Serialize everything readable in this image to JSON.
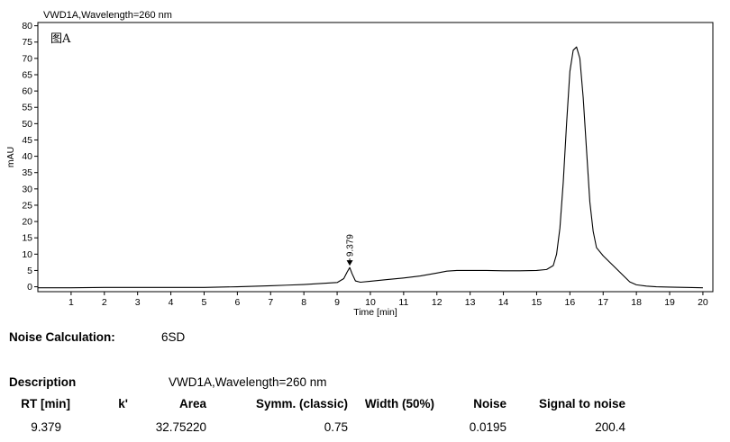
{
  "chart_data": {
    "type": "line",
    "title": "VWD1A,Wavelength=260 nm",
    "annotation": "图A",
    "xlabel": "Time [min]",
    "ylabel": "mAU",
    "xlim": [
      0,
      20.3
    ],
    "ylim": [
      -1.5,
      81
    ],
    "x_ticks": [
      1,
      2,
      3,
      4,
      5,
      6,
      7,
      8,
      9,
      10,
      11,
      12,
      13,
      14,
      15,
      16,
      17,
      18,
      19,
      20
    ],
    "y_ticks": [
      0,
      5,
      10,
      15,
      20,
      25,
      30,
      35,
      40,
      45,
      50,
      55,
      60,
      65,
      70,
      75,
      80
    ],
    "grid": false,
    "series": [
      {
        "x": [
          0,
          1,
          2,
          3,
          4,
          5,
          6,
          7,
          7.5,
          8,
          8.5,
          9,
          9.2,
          9.3,
          9.379,
          9.45,
          9.55,
          9.7,
          10,
          10.5,
          11,
          11.5,
          12,
          12.3,
          12.6,
          13,
          13.5,
          14,
          14.5,
          15,
          15.3,
          15.5,
          15.6,
          15.7,
          15.8,
          15.9,
          16,
          16.1,
          16.2,
          16.3,
          16.4,
          16.5,
          16.6,
          16.7,
          16.8,
          17,
          17.2,
          17.4,
          17.6,
          17.8,
          18,
          18.3,
          18.6,
          19,
          19.5,
          20
        ],
        "y": [
          -0.3,
          -0.3,
          -0.2,
          -0.2,
          -0.2,
          -0.2,
          0,
          0.3,
          0.5,
          0.7,
          1.0,
          1.3,
          2.5,
          4.5,
          5.9,
          4.0,
          1.8,
          1.4,
          1.7,
          2.2,
          2.7,
          3.3,
          4.2,
          4.8,
          5.0,
          5.0,
          5.0,
          4.9,
          4.9,
          5.0,
          5.3,
          6.5,
          10,
          18,
          32,
          50,
          66,
          72.5,
          73.5,
          70,
          58,
          42,
          26,
          17,
          12,
          9.5,
          7.5,
          5.5,
          3.5,
          1.5,
          0.6,
          0.2,
          0,
          -0.1,
          -0.2,
          -0.3
        ]
      }
    ],
    "peak_labels": [
      {
        "x": 9.379,
        "y": 5.9,
        "label": "9.379"
      }
    ]
  },
  "report": {
    "noise_label": "Noise Calculation:",
    "noise_value": "6SD",
    "description_label": "Description",
    "description_value": "VWD1A,Wavelength=260 nm",
    "columns": [
      "RT [min]",
      "k'",
      "Area",
      "Symm. (classic)",
      "Width (50%)",
      "Noise",
      "Signal to noise"
    ],
    "row": [
      "9.379",
      "",
      "32.75220",
      "0.75",
      "",
      "0.0195",
      "200.4"
    ]
  }
}
